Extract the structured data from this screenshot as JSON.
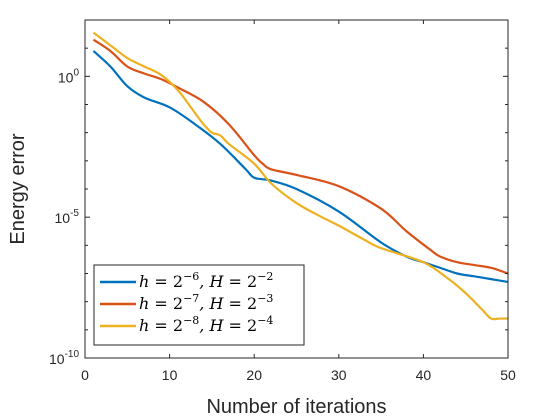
{
  "chart_data": {
    "type": "line",
    "title": "",
    "xlabel": "Number of iterations",
    "ylabel": "Energy error",
    "xlim": [
      0,
      50
    ],
    "ylim_exponent": [
      -10,
      2
    ],
    "yscale": "log",
    "grid": false,
    "legend_position": "bottom-left",
    "x_ticks": [
      {
        "value": 0,
        "label": "0"
      },
      {
        "value": 10,
        "label": "10"
      },
      {
        "value": 20,
        "label": "20"
      },
      {
        "value": 30,
        "label": "30"
      },
      {
        "value": 40,
        "label": "40"
      },
      {
        "value": 50,
        "label": "50"
      }
    ],
    "y_ticks": [
      {
        "exponent": 0,
        "base": "10",
        "sup": "0"
      },
      {
        "exponent": -5,
        "base": "10",
        "sup": "-5"
      },
      {
        "exponent": -10,
        "base": "10",
        "sup": "-10"
      }
    ],
    "series": [
      {
        "name": "h = 2^{-6}, H = 2^{-2}",
        "legend": {
          "h": "h",
          "eq": " = 2",
          "hexp": "−6",
          "H": ", H",
          "eq2": " = 2",
          "Hexp": "−2"
        },
        "color": "#0072BD",
        "x": [
          1,
          3,
          5,
          7,
          10,
          13,
          16,
          19,
          20,
          22,
          25,
          30,
          35,
          38,
          40,
          42,
          44,
          46,
          48,
          50
        ],
        "log10_y": [
          0.9,
          0.35,
          -0.35,
          -0.75,
          -1.1,
          -1.7,
          -2.4,
          -3.3,
          -3.6,
          -3.7,
          -4.0,
          -4.8,
          -5.9,
          -6.4,
          -6.6,
          -6.8,
          -7.0,
          -7.1,
          -7.2,
          -7.3
        ]
      },
      {
        "name": "h = 2^{-7}, H = 2^{-3}",
        "legend": {
          "h": "h",
          "eq": " = 2",
          "hexp": "−7",
          "H": ", H",
          "eq2": " = 2",
          "Hexp": "−3"
        },
        "color": "#D95319",
        "x": [
          1,
          3,
          5,
          7,
          9,
          11,
          14,
          17,
          20,
          21,
          22,
          25,
          30,
          35,
          38,
          41,
          42,
          44,
          46,
          48,
          50
        ],
        "log10_y": [
          1.3,
          0.9,
          0.35,
          0.1,
          -0.1,
          -0.4,
          -0.9,
          -1.7,
          -2.8,
          -3.1,
          -3.3,
          -3.5,
          -3.9,
          -4.7,
          -5.5,
          -6.2,
          -6.4,
          -6.6,
          -6.7,
          -6.8,
          -7.0
        ]
      },
      {
        "name": "h = 2^{-8}, H = 2^{-4}",
        "legend": {
          "h": "h",
          "eq": " = 2",
          "hexp": "−8",
          "H": ", H",
          "eq2": " = 2",
          "Hexp": "−4"
        },
        "color": "#EDB120",
        "x": [
          1,
          3,
          5,
          7,
          9,
          11,
          13,
          14,
          15,
          16,
          17,
          20,
          22,
          25,
          28,
          30,
          33,
          35,
          40,
          43,
          45,
          47,
          48,
          49,
          50
        ],
        "log10_y": [
          1.55,
          1.1,
          0.65,
          0.35,
          0.05,
          -0.5,
          -1.3,
          -1.7,
          -2.0,
          -2.1,
          -2.4,
          -3.1,
          -3.8,
          -4.5,
          -5.0,
          -5.3,
          -5.8,
          -6.1,
          -6.6,
          -7.2,
          -7.7,
          -8.3,
          -8.6,
          -8.6,
          -8.6
        ]
      }
    ]
  }
}
